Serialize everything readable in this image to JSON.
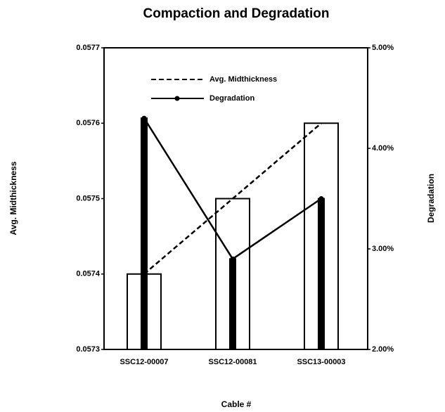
{
  "chart_data": {
    "type": "bar",
    "title": "Compaction and Degradation",
    "x_label": "Cable #",
    "y_label": "Avg. Midthickness",
    "y2_label": "Degradation",
    "categories": [
      "SSC12-00007",
      "SSC12-00081",
      "SSC13-00003"
    ],
    "series": [
      {
        "name": "Avg. Midthickness",
        "color": "#000000",
        "line_style": "dashed",
        "values": [
          0.0574,
          0.0575,
          0.0576
        ]
      },
      {
        "name": "Degradation",
        "color": "#000000",
        "line_style": "solid",
        "axis": "y2",
        "values": [
          4.3,
          2.9,
          3.5
        ]
      }
    ],
    "ylim": [
      0.0573,
      0.0577
    ],
    "yticks": [
      0.0573,
      0.0574,
      0.0575,
      0.0576,
      0.0577
    ],
    "y2lim": [
      2,
      5
    ],
    "y2ticks": [
      {
        "value": 2,
        "label": "2.00%"
      },
      {
        "value": 3,
        "label": "3.00%"
      },
      {
        "value": 4,
        "label": "4.00%"
      },
      {
        "value": 5,
        "label": "5.00%"
      }
    ],
    "legend": "top",
    "grid": false
  }
}
